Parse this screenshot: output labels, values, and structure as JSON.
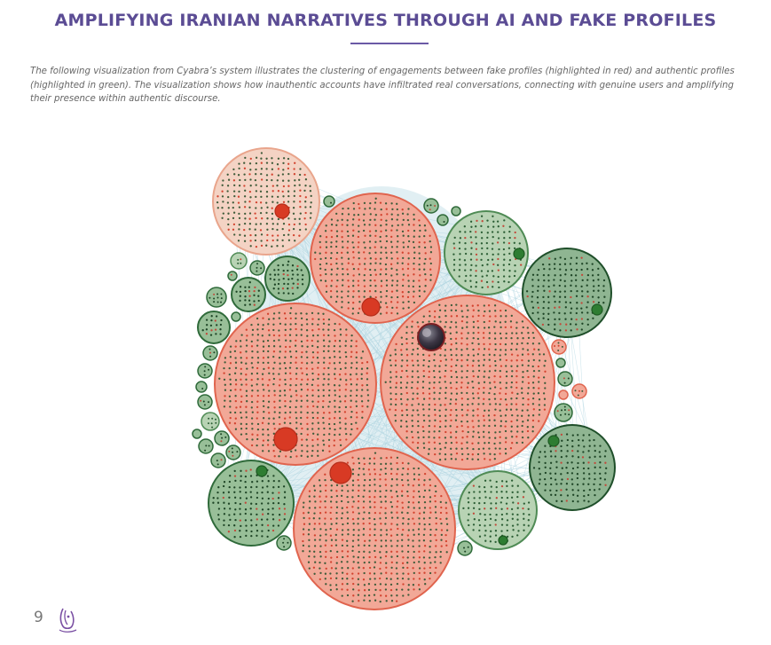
{
  "title": "AMPLIFYING IRANIAN NARRATIVES THROUGH AI AND FAKE PROFILES",
  "intro": "The following visualization from Cyabra’s system illustrates the clustering of engagements between fake profiles (highlighted in red) and authentic profiles (highlighted in green). The visualization shows how inauthentic accounts have infiltrated real conversations, connecting with genuine users and amplifying their presence within authentic discourse.",
  "page_number": "9",
  "colors": {
    "title": "#5b4c94",
    "fake_fill": "#f2a897",
    "fake_stroke": "#e0644e",
    "authentic_fill": "#98bf98",
    "authentic_stroke": "#2f6a3a",
    "edge": "#a9d1de",
    "hub_fake": "#d83a24",
    "hub_authentic": "#2e7d32"
  },
  "icons": {
    "logo": "owl-logo-icon"
  }
}
